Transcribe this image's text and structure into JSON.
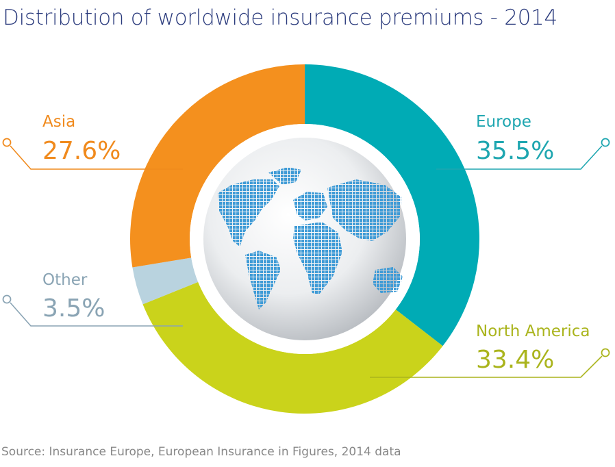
{
  "title": "Distribution of worldwide insurance premiums - 2014",
  "source": "Source: Insurance Europe, European Insurance in Figures, 2014 data",
  "chart_data": {
    "type": "pie",
    "title": "Distribution of worldwide insurance premiums - 2014",
    "categories": [
      "Europe",
      "North America",
      "Other",
      "Asia"
    ],
    "values": [
      35.5,
      33.4,
      3.5,
      27.6
    ],
    "labels": [
      "35.5%",
      "33.4%",
      "3.5%",
      "27.6%"
    ],
    "colors": [
      "#00abb5",
      "#cad31b",
      "#b9d3df",
      "#f4901e"
    ],
    "label_colors": [
      "#1ea6b0",
      "#aab41c",
      "#8aa4b4",
      "#f08a1d"
    ],
    "center_image": "world-map-globe-icon"
  }
}
